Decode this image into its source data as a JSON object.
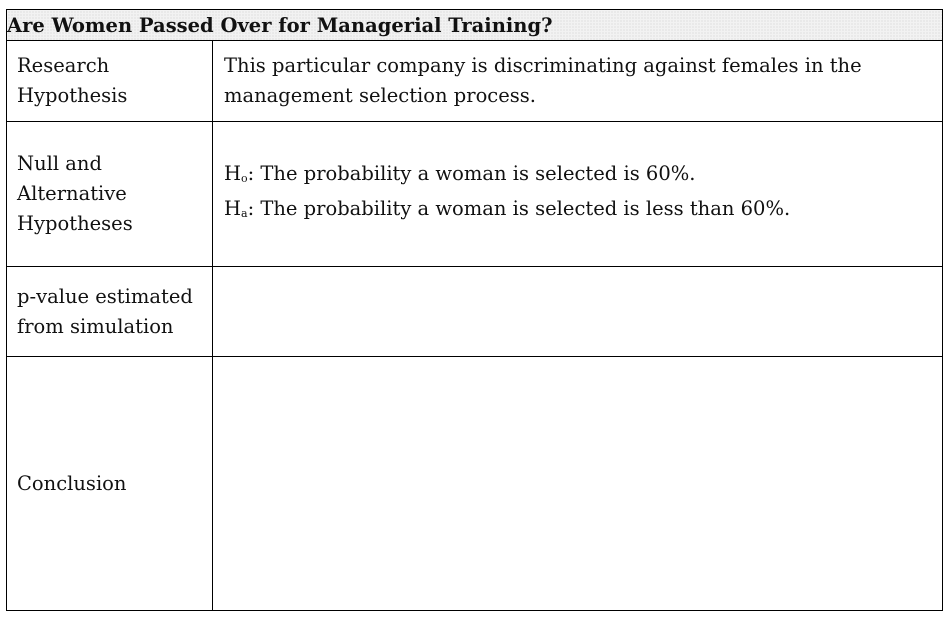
{
  "title": "Are Women Passed Over for Managerial Training?",
  "rows": {
    "research": {
      "label_lines": [
        "Research",
        "Hypothesis"
      ],
      "value": "This particular company is discriminating against females in the management selection process."
    },
    "hypotheses": {
      "label_lines": [
        "Null and",
        "Alternative",
        "Hypotheses"
      ],
      "null": {
        "symbol": "H",
        "subscript": "o",
        "text": ": The probability a woman is selected is 60%."
      },
      "alternative": {
        "symbol": "H",
        "subscript": "a",
        "text": ": The probability a woman is selected is less than 60%."
      }
    },
    "pvalue": {
      "label_lines": [
        "p-value estimated",
        "from simulation"
      ],
      "value": ""
    },
    "conclusion": {
      "label": "Conclusion",
      "value": ""
    }
  }
}
